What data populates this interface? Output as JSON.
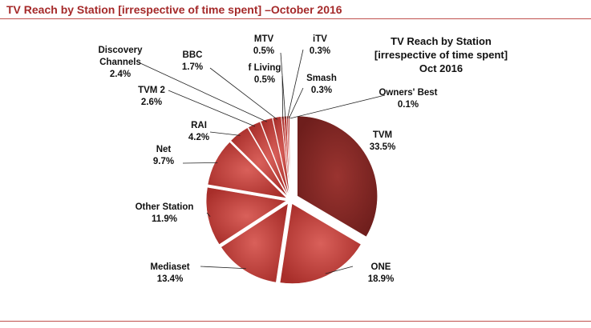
{
  "header": "TV Reach by Station [irrespective of time spent] –October 2016",
  "chart_data": {
    "type": "pie",
    "title_lines": [
      "TV Reach by Station",
      "[irrespective of time spent]",
      "Oct 2016"
    ],
    "categories": [
      "TVM",
      "ONE",
      "Mediaset",
      "Other Station",
      "Net",
      "RAI",
      "TVM 2",
      "Discovery Channels",
      "BBC",
      "f Living",
      "MTV",
      "iTV",
      "Smash",
      "Owners' Best"
    ],
    "values": [
      33.5,
      18.9,
      13.4,
      11.9,
      9.7,
      4.2,
      2.6,
      2.4,
      1.7,
      0.5,
      0.5,
      0.3,
      0.3,
      0.1
    ],
    "labels": [
      "33.5%",
      "18.9%",
      "13.4%",
      "11.9%",
      "9.7%",
      "4.2%",
      "2.6%",
      "2.4%",
      "1.7%",
      "0.5%",
      "0.5%",
      "0.3%",
      "0.3%",
      "0.1%"
    ],
    "start": "top",
    "direction": "clockwise",
    "exploded": true,
    "colors": {
      "first": "#8c2a26",
      "others": "#c0403a",
      "accent": "#a52a2a"
    }
  }
}
